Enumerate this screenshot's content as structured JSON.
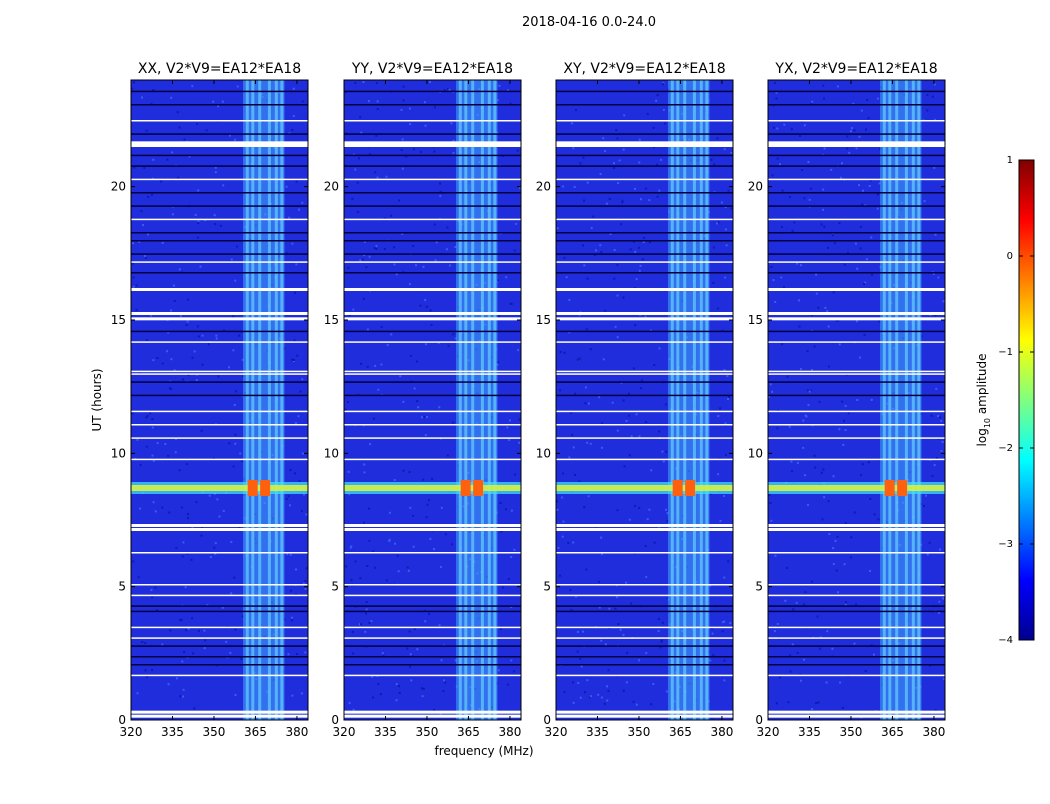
{
  "chart_data": {
    "type": "heatmap",
    "suptitle": "2018-04-16 0.0-24.0",
    "panels": [
      {
        "title": "XX, V2*V9=EA12*EA18"
      },
      {
        "title": "YY, V2*V9=EA12*EA18"
      },
      {
        "title": "XY, V2*V9=EA12*EA18"
      },
      {
        "title": "YX, V2*V9=EA12*EA18"
      }
    ],
    "xlabel": "frequency (MHz)",
    "ylabel": "UT (hours)",
    "xlim": [
      320,
      384
    ],
    "ylim": [
      0,
      24
    ],
    "xticks": [
      320,
      335,
      350,
      365,
      380
    ],
    "yticks": [
      0,
      5,
      10,
      15,
      20
    ],
    "colorbar": {
      "label": "log10 amplitude",
      "label_main": "log",
      "label_sub": "10",
      "label_rest": " amplitude",
      "range": [
        -4,
        1
      ],
      "ticks": [
        1,
        0,
        -1,
        -2,
        -3,
        -4
      ],
      "tick_labels": [
        "1",
        "0",
        "−1",
        "−2",
        "−3",
        "−4"
      ],
      "colormap": "jet"
    },
    "colors": {
      "background": "#1f2ddc",
      "rfi_band": "#3fa8ff",
      "flare": "#ff6010"
    },
    "features": {
      "flagged_hours": [
        0.2,
        0.35,
        7.2,
        7.35,
        15.1,
        15.3,
        16.2,
        21.6,
        21.7,
        13.0,
        13.1,
        5.1,
        6.3,
        4.7,
        3.5,
        3.1,
        1.7,
        9.8,
        10.6,
        11.1,
        11.6,
        14.2,
        17.2,
        18.8,
        20.3,
        22.5
      ],
      "dark_hours": [
        2.1,
        2.4,
        2.8,
        4.1,
        4.3,
        12.2,
        12.7,
        14.6,
        16.8,
        17.5,
        18.0,
        18.3,
        19.3,
        19.8,
        20.8,
        21.2,
        22.0,
        23.1,
        23.6
      ],
      "flare_hour": 8.7,
      "flare_channels_mhz": [
        364.0,
        368.5
      ],
      "rfi_band_mhz": [
        360.5,
        375.5
      ]
    }
  }
}
